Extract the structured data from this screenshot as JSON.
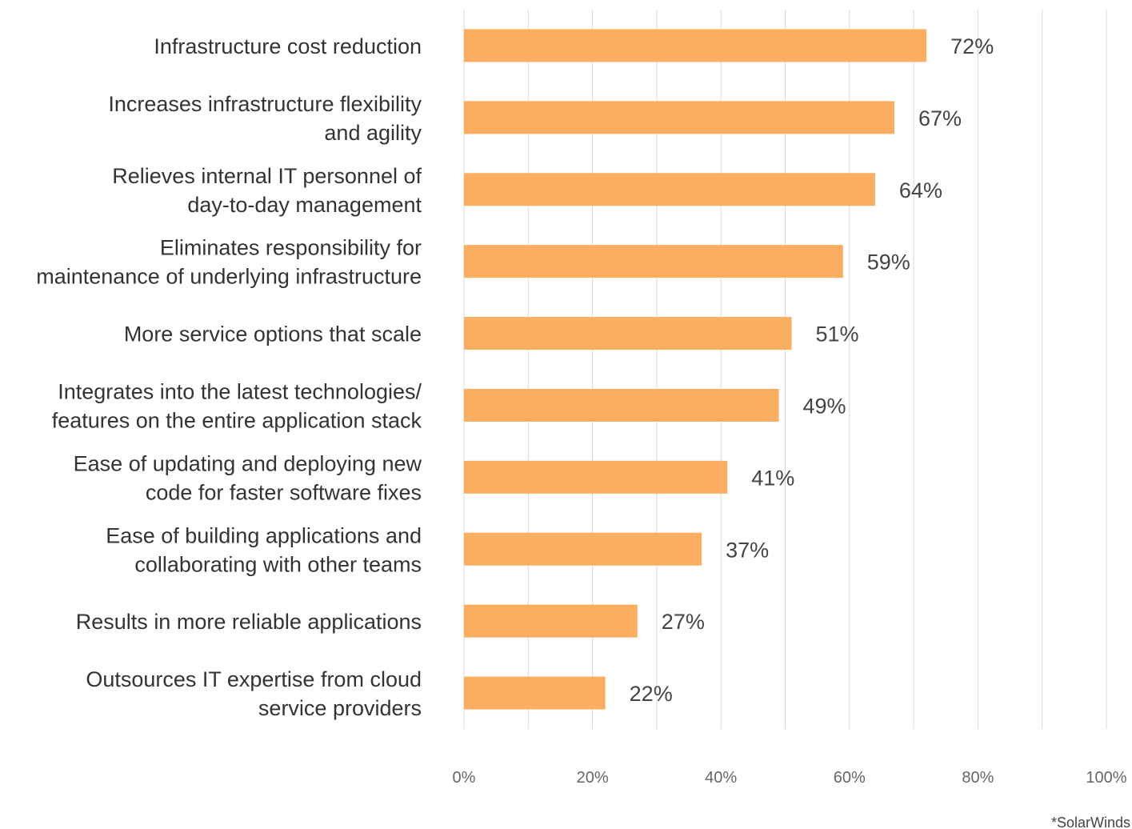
{
  "chart_data": {
    "type": "bar",
    "orientation": "horizontal",
    "categories": [
      [
        "Infrastructure cost reduction"
      ],
      [
        "Increases infrastructure flexibility",
        "and agility"
      ],
      [
        "Relieves internal IT personnel of",
        "day-to-day management"
      ],
      [
        "Eliminates responsibility for",
        "maintenance of underlying infrastructure"
      ],
      [
        "More service options that scale"
      ],
      [
        "Integrates into the latest technologies/",
        "features on the entire application stack"
      ],
      [
        "Ease of updating and deploying new",
        "code for faster software fixes"
      ],
      [
        "Ease of building applications and",
        "collaborating with other teams"
      ],
      [
        "Results in more reliable applications"
      ],
      [
        "Outsources IT expertise from cloud",
        "service providers"
      ]
    ],
    "values": [
      72,
      67,
      64,
      59,
      51,
      49,
      41,
      37,
      27,
      22
    ],
    "value_labels": [
      "72%",
      "67%",
      "64%",
      "59%",
      "51%",
      "49%",
      "41%",
      "37%",
      "27%",
      "22%"
    ],
    "xlim": [
      0,
      100
    ],
    "x_ticks": [
      0,
      20,
      40,
      60,
      80,
      100
    ],
    "x_tick_labels": [
      "0%",
      "20%",
      "40%",
      "60%",
      "80%",
      "100%"
    ],
    "gridlines": "vertical",
    "grid_step": 10,
    "bar_color": "#FBAE60",
    "grid_color": "#D9D9D9",
    "legend": "none",
    "source_note": "*SolarWinds"
  }
}
